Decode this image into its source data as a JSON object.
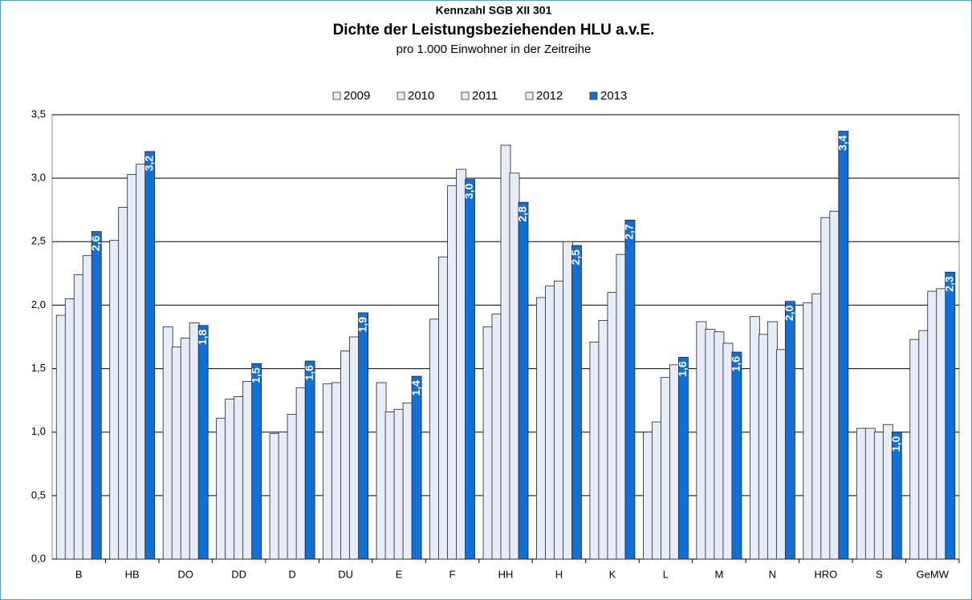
{
  "chart_data": {
    "type": "bar",
    "title": "Dichte der Leistungsbeziehenden HLU a.v.E.",
    "supertitle": "Kennzahl SGB XII 301",
    "subtitle": "pro 1.000 Einwohner in der Zeitreihe",
    "categories": [
      "B",
      "HB",
      "DO",
      "DD",
      "D",
      "DU",
      "E",
      "F",
      "HH",
      "H",
      "K",
      "L",
      "M",
      "N",
      "HRO",
      "S",
      "GeMW"
    ],
    "series": [
      {
        "name": "2009",
        "color": "#e6edf9",
        "values": [
          1.92,
          2.51,
          1.83,
          1.11,
          0.99,
          1.38,
          1.39,
          1.89,
          1.83,
          2.06,
          1.71,
          1.0,
          1.87,
          1.91,
          2.02,
          1.03,
          1.73
        ]
      },
      {
        "name": "2010",
        "color": "#e6edf9",
        "values": [
          2.05,
          2.77,
          1.67,
          1.26,
          1.0,
          1.39,
          1.16,
          2.38,
          1.93,
          2.15,
          1.88,
          1.08,
          1.81,
          1.77,
          2.09,
          1.03,
          1.8
        ]
      },
      {
        "name": "2011",
        "color": "#e6edf9",
        "values": [
          2.24,
          3.03,
          1.74,
          1.28,
          1.14,
          1.64,
          1.18,
          2.94,
          3.26,
          2.19,
          2.1,
          1.43,
          1.79,
          1.87,
          2.69,
          1.0,
          2.11
        ]
      },
      {
        "name": "2012",
        "color": "#e6edf9",
        "values": [
          2.39,
          3.11,
          1.86,
          1.4,
          1.35,
          1.75,
          1.23,
          3.07,
          3.04,
          2.5,
          2.4,
          1.53,
          1.7,
          1.65,
          2.74,
          1.06,
          2.13
        ]
      },
      {
        "name": "2013",
        "color": "#1170d8",
        "values": [
          2.58,
          3.21,
          1.84,
          1.54,
          1.56,
          1.94,
          1.44,
          2.99,
          2.81,
          2.47,
          2.67,
          1.59,
          1.63,
          2.03,
          3.37,
          1.0,
          2.26
        ],
        "value_labels": [
          "2,6",
          "3,2",
          "1,8",
          "1,5",
          "1,6",
          "1,9",
          "1,4",
          "3,0",
          "2,8",
          "2,5",
          "2,7",
          "1,6",
          "1,6",
          "2,0",
          "3,4",
          "1,0",
          "2,3"
        ]
      }
    ],
    "ylim": [
      0,
      3.5
    ],
    "yticks": [
      {
        "value": 0,
        "label": "0,0"
      },
      {
        "value": 0.5,
        "label": "0,5"
      },
      {
        "value": 1,
        "label": "1,0"
      },
      {
        "value": 1.5,
        "label": "1,5"
      },
      {
        "value": 2,
        "label": "2,0"
      },
      {
        "value": 2.5,
        "label": "2,5"
      },
      {
        "value": 3,
        "label": "3,0"
      },
      {
        "value": 3.5,
        "label": "3,5"
      }
    ],
    "grid": true,
    "legend": "top"
  }
}
